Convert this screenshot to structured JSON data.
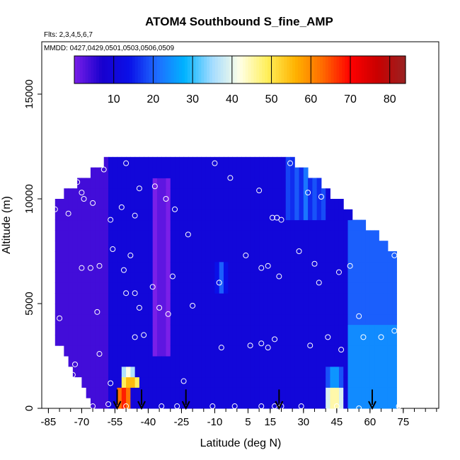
{
  "chart_data": {
    "type": "heatmap",
    "title": "ATOM4 Southbound S_fine_AMP",
    "flights_label": "Flts: 2,3,4,5,6,7",
    "dates_label": "MMDD: 0427,0429,0501,0503,0506,0509",
    "xlabel": "Latitude (deg N)",
    "ylabel": "Altitude (m)",
    "xlim": [
      -88,
      91
    ],
    "ylim": [
      0,
      17500
    ],
    "x_ticks": [
      -85,
      -70,
      -55,
      -40,
      -25,
      -10,
      5,
      15,
      30,
      45,
      60,
      75
    ],
    "x_minor_step": 5,
    "y_ticks": [
      0,
      5000,
      10000,
      15000
    ],
    "colorbar": {
      "range": [
        0,
        84
      ],
      "ticks": [
        10,
        20,
        30,
        40,
        50,
        60,
        70,
        80
      ],
      "colors": [
        "#7a1fe8",
        "#1800ce",
        "#0a10e8",
        "#1e6cff",
        "#00b4ff",
        "#a4dcff",
        "#ffffe6",
        "#ffef5a",
        "#ffb300",
        "#ff6a00",
        "#ff0000",
        "#c80000",
        "#992222"
      ]
    },
    "field_mean_values": [
      {
        "lat": -52,
        "alt_bottom": 0,
        "alt_top": 700,
        "value": 68
      },
      {
        "lat": -49,
        "alt_bottom": 700,
        "alt_top": 1200,
        "value": 58
      },
      {
        "lat": -50,
        "alt_bottom": 1200,
        "alt_top": 1900,
        "value": 42
      },
      {
        "lat": 43,
        "alt_bottom": 0,
        "alt_top": 700,
        "value": 48
      },
      {
        "lat": 43,
        "alt_bottom": 700,
        "alt_top": 1700,
        "value": 28
      },
      {
        "lat": 30,
        "alt_bottom": 9000,
        "alt_top": 11500,
        "value": 22
      },
      {
        "lat": -8,
        "alt_bottom": 5500,
        "alt_top": 6800,
        "value": 20
      },
      {
        "lat": -35,
        "alt_bottom": 2500,
        "alt_top": 11000,
        "value": 5
      }
    ],
    "series": [
      {
        "name": "samples",
        "points": [
          [
            -82,
            9500
          ],
          [
            -76,
            9300
          ],
          [
            -72,
            10800
          ],
          [
            -70,
            10300
          ],
          [
            -69,
            10000
          ],
          [
            -65,
            9800
          ],
          [
            -60,
            11400
          ],
          [
            -50,
            11700
          ],
          [
            -44,
            10500
          ],
          [
            -37,
            10600
          ],
          [
            -32,
            10000
          ],
          [
            -28,
            9500
          ],
          [
            -57,
            9000
          ],
          [
            -52,
            9600
          ],
          [
            -46,
            9200
          ],
          [
            -22,
            8300
          ],
          [
            -10,
            11700
          ],
          [
            -3,
            11000
          ],
          [
            10,
            10400
          ],
          [
            16,
            9100
          ],
          [
            18,
            9100
          ],
          [
            20,
            9000
          ],
          [
            24,
            11700
          ],
          [
            32,
            10300
          ],
          [
            38,
            10100
          ],
          [
            54,
            9700
          ],
          [
            -56,
            7600
          ],
          [
            -70,
            6700
          ],
          [
            -66,
            6700
          ],
          [
            -62,
            6800
          ],
          [
            -51,
            6600
          ],
          [
            -48,
            7300
          ],
          [
            -38,
            5800
          ],
          [
            -29,
            6300
          ],
          [
            -8,
            6000
          ],
          [
            4,
            7300
          ],
          [
            11,
            6700
          ],
          [
            14,
            6800
          ],
          [
            19,
            6300
          ],
          [
            28,
            7500
          ],
          [
            35,
            6900
          ],
          [
            37,
            6000
          ],
          [
            46,
            6500
          ],
          [
            51,
            6800
          ],
          [
            71,
            7300
          ],
          [
            -80,
            4300
          ],
          [
            -63,
            4600
          ],
          [
            -50,
            5500
          ],
          [
            -46,
            5500
          ],
          [
            -44,
            4800
          ],
          [
            -35,
            4800
          ],
          [
            -31,
            4500
          ],
          [
            -20,
            4900
          ],
          [
            -62,
            2600
          ],
          [
            -57,
            1200
          ],
          [
            -46,
            3400
          ],
          [
            -42,
            3500
          ],
          [
            -7,
            2900
          ],
          [
            6,
            3000
          ],
          [
            11,
            3100
          ],
          [
            14,
            2900
          ],
          [
            17,
            3300
          ],
          [
            33,
            3000
          ],
          [
            41,
            3400
          ],
          [
            47,
            2800
          ],
          [
            55,
            4400
          ],
          [
            57,
            3400
          ],
          [
            65,
            3400
          ],
          [
            71,
            3700
          ],
          [
            -74,
            1600
          ],
          [
            -73,
            2100
          ],
          [
            -70,
            300
          ],
          [
            -65,
            100
          ],
          [
            -58,
            200
          ],
          [
            -50,
            100
          ],
          [
            -34,
            100
          ],
          [
            -27,
            100
          ],
          [
            -24,
            1300
          ],
          [
            -11,
            100
          ],
          [
            -1,
            100
          ],
          [
            11,
            100
          ],
          [
            17,
            100
          ],
          [
            20,
            100
          ],
          [
            29,
            100
          ],
          [
            45,
            100
          ],
          [
            55,
            0
          ],
          [
            73,
            100
          ]
        ]
      }
    ],
    "arrow_latitudes": [
      -54,
      -43,
      -23,
      19,
      61
    ]
  }
}
